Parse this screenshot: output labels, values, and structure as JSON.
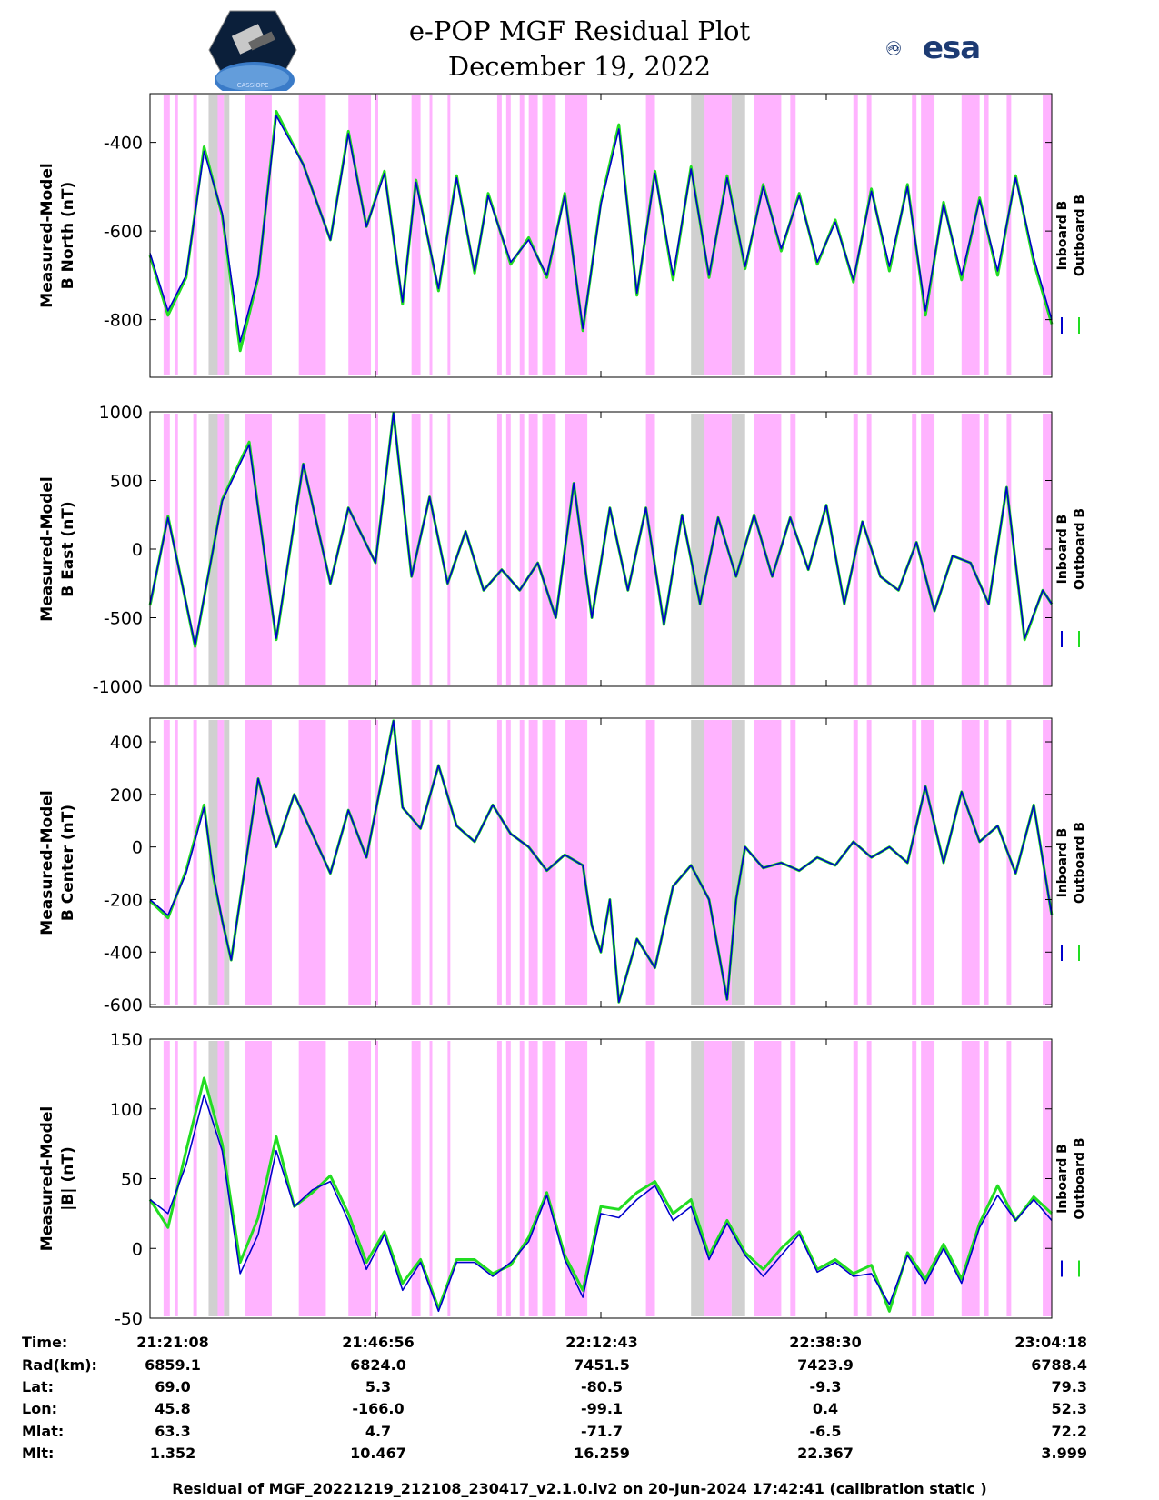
{
  "header": {
    "title_line1": "e-POP MGF Residual Plot",
    "title_line2": "December 19, 2022",
    "logo_right": "esa"
  },
  "legend": {
    "inboard": "Inboard B",
    "outboard": "Outboard B"
  },
  "colors": {
    "inboard": "#0000cc",
    "outboard": "#22dd22",
    "pink": "#ffb3ff",
    "gray": "#d0d0d0"
  },
  "chart_data": [
    {
      "type": "line",
      "ylabel_line1": "Measured-Model",
      "ylabel_line2": "B North (nT)",
      "ylim": [
        -930,
        -290
      ],
      "yticks": [
        -400,
        -600,
        -800
      ],
      "series": [
        {
          "name": "Inboard B",
          "x": [
            0,
            2,
            4,
            6,
            8,
            10,
            12,
            14,
            17,
            20,
            22,
            24,
            26,
            28,
            29.5,
            32,
            34,
            36,
            37.5,
            40,
            42,
            44,
            46,
            48,
            50,
            52,
            54,
            56,
            58,
            60,
            62,
            64,
            66,
            68,
            70,
            72,
            74,
            76,
            78,
            80,
            82,
            84,
            86,
            88,
            90,
            92,
            94,
            96,
            98,
            100
          ],
          "y": [
            -650,
            -780,
            -700,
            -420,
            -560,
            -850,
            -700,
            -340,
            -450,
            -620,
            -380,
            -590,
            -470,
            -760,
            -490,
            -730,
            -480,
            -690,
            -520,
            -670,
            -620,
            -700,
            -520,
            -820,
            -540,
            -370,
            -740,
            -470,
            -700,
            -460,
            -700,
            -480,
            -680,
            -500,
            -640,
            -520,
            -670,
            -580,
            -710,
            -510,
            -680,
            -500,
            -780,
            -540,
            -700,
            -530,
            -690,
            -480,
            -660,
            -800
          ]
        },
        {
          "name": "Outboard B",
          "x": [
            0,
            2,
            4,
            6,
            8,
            10,
            12,
            14,
            17,
            20,
            22,
            24,
            26,
            28,
            29.5,
            32,
            34,
            36,
            37.5,
            40,
            42,
            44,
            46,
            48,
            50,
            52,
            54,
            56,
            58,
            60,
            62,
            64,
            66,
            68,
            70,
            72,
            74,
            76,
            78,
            80,
            82,
            84,
            86,
            88,
            90,
            92,
            94,
            96,
            98,
            100
          ],
          "y": [
            -655,
            -790,
            -705,
            -410,
            -565,
            -870,
            -705,
            -330,
            -450,
            -620,
            -375,
            -590,
            -465,
            -765,
            -485,
            -735,
            -475,
            -695,
            -515,
            -675,
            -615,
            -705,
            -515,
            -825,
            -535,
            -360,
            -745,
            -465,
            -710,
            -455,
            -705,
            -475,
            -685,
            -495,
            -645,
            -515,
            -675,
            -575,
            -715,
            -505,
            -690,
            -495,
            -790,
            -535,
            -710,
            -525,
            -700,
            -475,
            -670,
            -810
          ]
        }
      ]
    },
    {
      "type": "line",
      "ylabel_line1": "Measured-Model",
      "ylabel_line2": "B East (nT)",
      "ylim": [
        -1000,
        1000
      ],
      "yticks": [
        1000,
        500,
        0,
        -500,
        -1000
      ],
      "series": [
        {
          "name": "Inboard B",
          "x": [
            0,
            2,
            5,
            8,
            11,
            14,
            17,
            20,
            22,
            25,
            27,
            29,
            31,
            33,
            35,
            37,
            39,
            41,
            43,
            45,
            47,
            49,
            51,
            53,
            55,
            57,
            59,
            61,
            63,
            65,
            67,
            69,
            71,
            73,
            75,
            77,
            79,
            81,
            83,
            85,
            87,
            89,
            91,
            93,
            95,
            97,
            99,
            100
          ],
          "y": [
            -400,
            230,
            -700,
            350,
            760,
            -650,
            620,
            -250,
            300,
            -100,
            990,
            -200,
            380,
            -250,
            130,
            -300,
            -150,
            -300,
            -100,
            -500,
            480,
            -500,
            300,
            -300,
            300,
            -550,
            250,
            -400,
            230,
            -200,
            250,
            -200,
            230,
            -150,
            320,
            -400,
            200,
            -200,
            -300,
            50,
            -450,
            -50,
            -100,
            -400,
            450,
            -650,
            -300,
            -400
          ]
        },
        {
          "name": "Outboard B",
          "x": [
            0,
            2,
            5,
            8,
            11,
            14,
            17,
            20,
            22,
            25,
            27,
            29,
            31,
            33,
            35,
            37,
            39,
            41,
            43,
            45,
            47,
            49,
            51,
            53,
            55,
            57,
            59,
            61,
            63,
            65,
            67,
            69,
            71,
            73,
            75,
            77,
            79,
            81,
            83,
            85,
            87,
            89,
            91,
            93,
            95,
            97,
            99,
            100
          ],
          "y": [
            -410,
            240,
            -710,
            360,
            780,
            -660,
            620,
            -250,
            300,
            -100,
            990,
            -200,
            380,
            -250,
            130,
            -300,
            -150,
            -300,
            -100,
            -500,
            480,
            -500,
            300,
            -300,
            300,
            -550,
            250,
            -400,
            230,
            -200,
            250,
            -200,
            230,
            -150,
            320,
            -400,
            200,
            -200,
            -300,
            50,
            -450,
            -50,
            -100,
            -400,
            450,
            -660,
            -300,
            -400
          ]
        }
      ]
    },
    {
      "type": "line",
      "ylabel_line1": "Measured-Model",
      "ylabel_line2": "B Center (nT)",
      "ylim": [
        -610,
        490
      ],
      "yticks": [
        400,
        200,
        0,
        -200,
        -400,
        -600
      ],
      "series": [
        {
          "name": "Inboard B",
          "x": [
            0,
            2,
            4,
            6,
            7,
            8,
            9,
            10,
            12,
            14,
            16,
            20,
            22,
            24,
            27,
            28,
            30,
            32,
            34,
            36,
            38,
            40,
            42,
            44,
            46,
            48,
            49,
            50,
            51,
            52,
            54,
            56,
            58,
            60,
            62,
            64,
            65,
            66,
            68,
            70,
            72,
            74,
            76,
            78,
            80,
            82,
            84,
            86,
            88,
            90,
            92,
            94,
            96,
            98,
            100
          ],
          "y": [
            -200,
            -260,
            -100,
            150,
            -100,
            -280,
            -430,
            -200,
            260,
            0,
            200,
            -100,
            140,
            -40,
            480,
            150,
            70,
            310,
            80,
            20,
            160,
            50,
            0,
            -90,
            -30,
            -70,
            -300,
            -400,
            -200,
            -590,
            -350,
            -460,
            -150,
            -70,
            -200,
            -580,
            -200,
            0,
            -80,
            -60,
            -90,
            -40,
            -70,
            20,
            -40,
            0,
            -60,
            230,
            -60,
            210,
            20,
            80,
            -100,
            160,
            -260
          ]
        },
        {
          "name": "Outboard B",
          "x": [
            0,
            2,
            4,
            6,
            7,
            8,
            9,
            10,
            12,
            14,
            16,
            20,
            22,
            24,
            27,
            28,
            30,
            32,
            34,
            36,
            38,
            40,
            42,
            44,
            46,
            48,
            49,
            50,
            51,
            52,
            54,
            56,
            58,
            60,
            62,
            64,
            65,
            66,
            68,
            70,
            72,
            74,
            76,
            78,
            80,
            82,
            84,
            86,
            88,
            90,
            92,
            94,
            96,
            98,
            100
          ],
          "y": [
            -205,
            -270,
            -90,
            160,
            -110,
            -280,
            -430,
            -200,
            260,
            0,
            200,
            -100,
            140,
            -40,
            480,
            150,
            70,
            310,
            80,
            20,
            160,
            50,
            0,
            -90,
            -30,
            -70,
            -300,
            -400,
            -200,
            -590,
            -350,
            -460,
            -150,
            -70,
            -200,
            -580,
            -200,
            0,
            -80,
            -60,
            -90,
            -40,
            -70,
            20,
            -40,
            0,
            -60,
            230,
            -60,
            210,
            20,
            80,
            -100,
            160,
            -260
          ]
        }
      ]
    },
    {
      "type": "line",
      "ylabel_line1": "Measured-Model",
      "ylabel_line2": "|B| (nT)",
      "ylim": [
        -50,
        150
      ],
      "yticks": [
        150,
        100,
        50,
        0,
        -50
      ],
      "series": [
        {
          "name": "Inboard B",
          "x": [
            0,
            2,
            4,
            6,
            8,
            10,
            12,
            14,
            16,
            18,
            20,
            22,
            24,
            26,
            28,
            30,
            32,
            34,
            36,
            38,
            40,
            42,
            44,
            46,
            48,
            50,
            52,
            54,
            56,
            58,
            60,
            62,
            64,
            66,
            68,
            70,
            72,
            74,
            76,
            78,
            80,
            82,
            84,
            86,
            88,
            90,
            92,
            94,
            96,
            98,
            100
          ],
          "y": [
            35,
            25,
            60,
            110,
            70,
            -18,
            10,
            70,
            30,
            42,
            48,
            20,
            -15,
            10,
            -30,
            -10,
            -45,
            -10,
            -10,
            -20,
            -10,
            5,
            38,
            -8,
            -35,
            25,
            22,
            35,
            45,
            20,
            30,
            -8,
            18,
            -5,
            -20,
            -5,
            10,
            -17,
            -10,
            -20,
            -18,
            -40,
            -5,
            -25,
            0,
            -25,
            15,
            38,
            20,
            35,
            20
          ]
        },
        {
          "name": "Outboard B",
          "x": [
            0,
            2,
            4,
            6,
            8,
            10,
            12,
            14,
            16,
            18,
            20,
            22,
            24,
            26,
            28,
            30,
            32,
            34,
            36,
            38,
            40,
            42,
            44,
            46,
            48,
            50,
            52,
            54,
            56,
            58,
            60,
            62,
            64,
            66,
            68,
            70,
            72,
            74,
            76,
            78,
            80,
            82,
            84,
            86,
            88,
            90,
            92,
            94,
            96,
            98,
            100
          ],
          "y": [
            35,
            15,
            70,
            122,
            75,
            -10,
            22,
            80,
            30,
            40,
            52,
            25,
            -10,
            12,
            -25,
            -8,
            -43,
            -8,
            -8,
            -18,
            -12,
            8,
            40,
            -5,
            -30,
            30,
            28,
            40,
            48,
            25,
            35,
            -5,
            20,
            -3,
            -15,
            0,
            12,
            -15,
            -8,
            -18,
            -12,
            -45,
            -3,
            -22,
            3,
            -22,
            18,
            45,
            20,
            37,
            25
          ]
        }
      ]
    }
  ],
  "time_table": {
    "row_labels": [
      "Time:",
      "Rad(km):",
      "Lat:",
      "Lon:",
      "Mlat:",
      "Mlt:"
    ],
    "columns": [
      [
        "21:21:08",
        "6859.1",
        "69.0",
        "45.8",
        "63.3",
        "1.352"
      ],
      [
        "21:46:56",
        "6824.0",
        "5.3",
        "-166.0",
        "4.7",
        "10.467"
      ],
      [
        "22:12:43",
        "7451.5",
        "-80.5",
        "-99.1",
        "-71.7",
        "16.259"
      ],
      [
        "22:38:30",
        "7423.9",
        "-9.3",
        "0.4",
        "-6.5",
        "22.367"
      ],
      [
        "23:04:18",
        "6788.4",
        "79.3",
        "52.3",
        "72.2",
        "3.999"
      ]
    ]
  },
  "shading": {
    "pink": [
      [
        1.5,
        2.2
      ],
      [
        2.8,
        3.1
      ],
      [
        4.8,
        5.2
      ],
      [
        6.5,
        8.2
      ],
      [
        10.5,
        13.5
      ],
      [
        16.5,
        19.5
      ],
      [
        22,
        24.5
      ],
      [
        25,
        25.3
      ],
      [
        29,
        30
      ],
      [
        31,
        31.3
      ],
      [
        33,
        33.3
      ],
      [
        38.5,
        39
      ],
      [
        39.5,
        40
      ],
      [
        41,
        41.5
      ],
      [
        42,
        43
      ],
      [
        43.5,
        45
      ],
      [
        46,
        48.5
      ],
      [
        55,
        56
      ],
      [
        60.5,
        64.5
      ],
      [
        67,
        70
      ],
      [
        71,
        71.6
      ],
      [
        78,
        78.5
      ],
      [
        79.5,
        80
      ],
      [
        84.5,
        85
      ],
      [
        85.5,
        87
      ],
      [
        90,
        92
      ],
      [
        92.5,
        93
      ],
      [
        95,
        95.5
      ],
      [
        99,
        100
      ]
    ],
    "gray": [
      [
        6.5,
        7.5
      ],
      [
        8.2,
        8.8
      ],
      [
        60,
        61.5
      ],
      [
        64.5,
        66
      ]
    ]
  },
  "footer": "Residual of MGF_20221219_212108_230417_v2.1.0.lv2 on 20-Jun-2024 17:42:41 (calibration static )"
}
